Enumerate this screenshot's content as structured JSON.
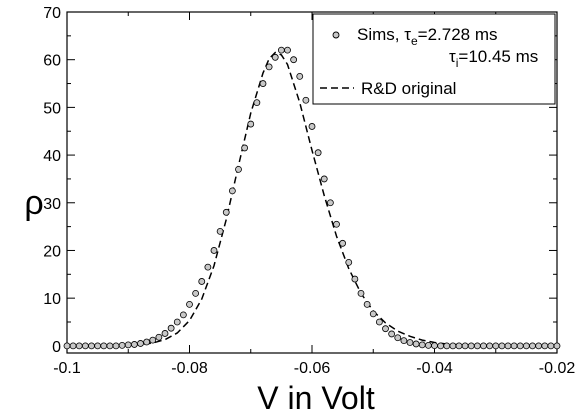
{
  "chart_data": {
    "type": "scatter",
    "xlabel": "V in Volt",
    "ylabel": "ρ",
    "xlim": [
      -0.1,
      -0.02
    ],
    "ylim": [
      -1.5,
      70
    ],
    "x_ticks": [
      -0.1,
      -0.08,
      -0.06,
      -0.04,
      -0.02
    ],
    "x_tick_labels": [
      "-0.1",
      "-0.08",
      "-0.06",
      "-0.04",
      "-0.02"
    ],
    "y_ticks": [
      0,
      10,
      20,
      30,
      40,
      50,
      60,
      70
    ],
    "y_tick_labels": [
      "0",
      "10",
      "20",
      "30",
      "40",
      "50",
      "60",
      "70"
    ],
    "grid": false,
    "legend_position": "top-right",
    "legend": {
      "sims_label": "Sims, τ",
      "sims_sub_e": "e",
      "sims_tau_e_value": "=2.728 ms",
      "sims_tau_i_prefix": "τ",
      "sims_sub_i": "i",
      "sims_tau_i_value": "=10.45 ms",
      "rd_label": "R&D original"
    },
    "series": [
      {
        "name": "Sims, τe=2.728 ms τi=10.45 ms",
        "style": "circles",
        "color": "#000000",
        "x": [
          -0.1,
          -0.099,
          -0.098,
          -0.097,
          -0.096,
          -0.095,
          -0.094,
          -0.093,
          -0.092,
          -0.091,
          -0.09,
          -0.089,
          -0.088,
          -0.087,
          -0.086,
          -0.085,
          -0.084,
          -0.083,
          -0.082,
          -0.081,
          -0.08,
          -0.079,
          -0.078,
          -0.077,
          -0.076,
          -0.075,
          -0.074,
          -0.073,
          -0.072,
          -0.071,
          -0.07,
          -0.069,
          -0.068,
          -0.067,
          -0.066,
          -0.065,
          -0.064,
          -0.063,
          -0.062,
          -0.061,
          -0.06,
          -0.059,
          -0.058,
          -0.057,
          -0.056,
          -0.055,
          -0.054,
          -0.053,
          -0.052,
          -0.051,
          -0.05,
          -0.049,
          -0.048,
          -0.047,
          -0.046,
          -0.045,
          -0.044,
          -0.043,
          -0.042,
          -0.041,
          -0.04,
          -0.039,
          -0.038,
          -0.037,
          -0.036,
          -0.035,
          -0.034,
          -0.033,
          -0.032,
          -0.031,
          -0.03,
          -0.029,
          -0.028,
          -0.027,
          -0.026,
          -0.025,
          -0.024,
          -0.023,
          -0.022,
          -0.021,
          -0.02
        ],
        "y": [
          0,
          0,
          0,
          0,
          0,
          0,
          0,
          0,
          0,
          0.1,
          0.2,
          0.3,
          0.5,
          0.8,
          1.2,
          1.8,
          2.6,
          3.7,
          5.0,
          6.5,
          8.7,
          11,
          13.5,
          16.5,
          20,
          24,
          28,
          32.5,
          37,
          41.5,
          46.5,
          51,
          55,
          58.5,
          60.5,
          62,
          62,
          60,
          56.5,
          51.5,
          46,
          40.5,
          35,
          30,
          25.5,
          21.5,
          17.5,
          14,
          11,
          8.7,
          6.7,
          5.0,
          3.6,
          2.5,
          1.7,
          1.1,
          0.7,
          0.4,
          0.2,
          0.1,
          0.05,
          0,
          0,
          0,
          0,
          0,
          0,
          0,
          0,
          0,
          0,
          0,
          0,
          0,
          0,
          0,
          0,
          0,
          0,
          0,
          0
        ]
      },
      {
        "name": "R&D original",
        "style": "dashed",
        "color": "#000000",
        "x": [
          -0.1,
          -0.096,
          -0.092,
          -0.09,
          -0.088,
          -0.086,
          -0.084,
          -0.082,
          -0.08,
          -0.078,
          -0.076,
          -0.074,
          -0.072,
          -0.07,
          -0.068,
          -0.067,
          -0.066,
          -0.065,
          -0.064,
          -0.062,
          -0.06,
          -0.058,
          -0.056,
          -0.054,
          -0.052,
          -0.05,
          -0.048,
          -0.046,
          -0.044,
          -0.042,
          -0.04,
          -0.038,
          -0.036,
          -0.034,
          -0.032,
          -0.03,
          -0.025,
          -0.02
        ],
        "y": [
          0,
          0,
          0.05,
          0.1,
          0.3,
          0.6,
          1.3,
          2.7,
          5.3,
          9.8,
          16.8,
          26.5,
          37.8,
          48.8,
          57.2,
          60.2,
          61.5,
          61.0,
          59.0,
          51.0,
          41.0,
          31.5,
          23.0,
          16.2,
          11.0,
          7.3,
          4.8,
          3.1,
          2.0,
          1.2,
          0.7,
          0.4,
          0.25,
          0.15,
          0.08,
          0.04,
          0.01,
          0
        ]
      }
    ]
  }
}
